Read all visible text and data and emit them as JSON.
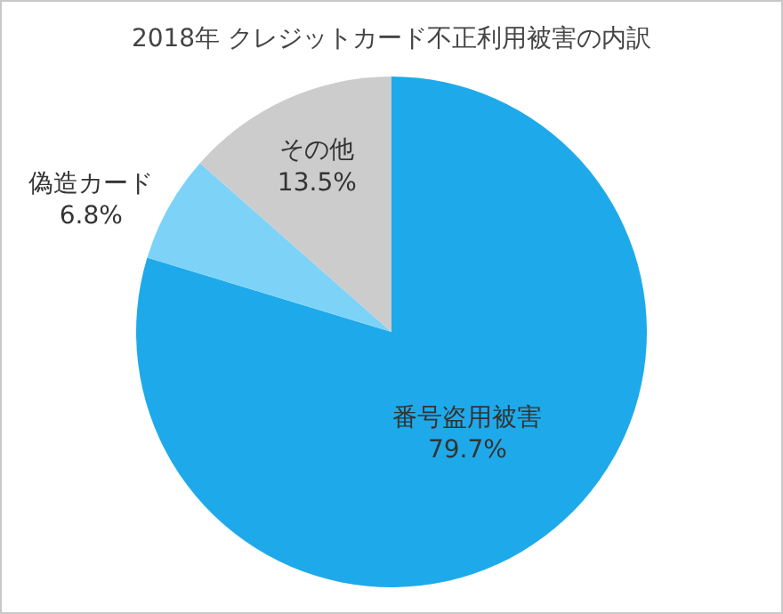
{
  "chart_data": {
    "type": "pie",
    "title": "2018年 クレジットカード不正利用被害の内訳",
    "categories": [
      "番号盗用被害",
      "偽造カード",
      "その他"
    ],
    "values": [
      79.7,
      6.8,
      13.5
    ],
    "value_labels": [
      "79.7%",
      "6.8%",
      "13.5%"
    ],
    "colors": [
      "#1eaaea",
      "#7dd3f7",
      "#cccccc"
    ],
    "legend": false
  }
}
